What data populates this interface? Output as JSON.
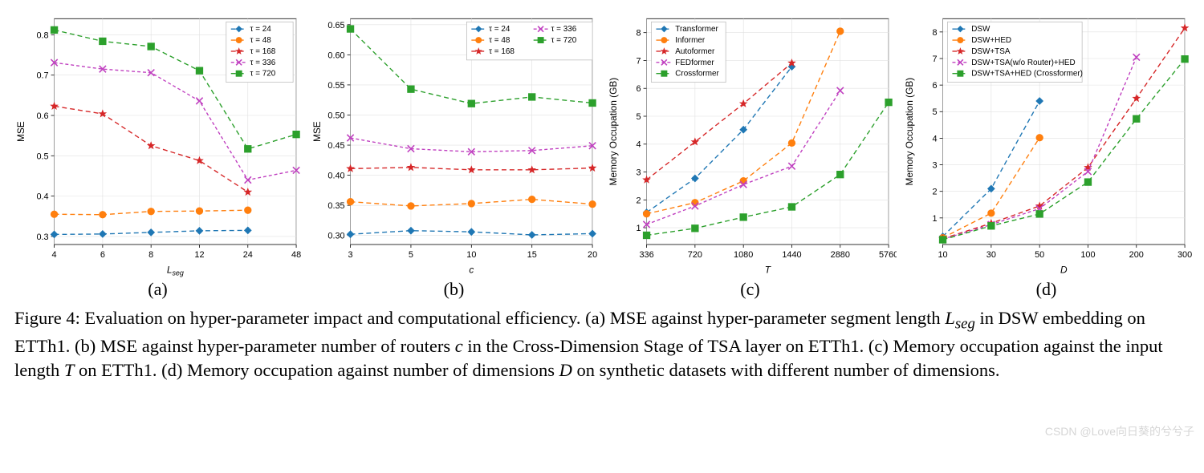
{
  "background_color": "#ffffff",
  "grid_color": "#e0e0e0",
  "border_color": "#000000",
  "watermark": "CSDN @Love向日葵的兮兮子",
  "caption": {
    "prefix": "Figure 4: Evaluation on hyper-parameter impact and computational efficiency. (a) MSE against hyper-parameter segment length ",
    "lseg": "L",
    "lseg_sub": "seg",
    "mid1": " in DSW embedding on ETTh1. (b) MSE against hyper-parameter number of routers ",
    "c_var": "c",
    "mid2": " in the Cross-Dimension Stage of TSA layer on ETTh1. (c) Memory occupation against the input length ",
    "t_var": "T",
    "mid3": " on ETTh1. (d) Memory occupation against number of dimensions ",
    "d_var": "D",
    "tail": " on synthetic datasets with different number of dimensions."
  },
  "panels": {
    "a": {
      "letter": "(a)",
      "type": "line",
      "xlabel": "L_seg",
      "ylabel": "MSE",
      "xticks": [
        4,
        6,
        8,
        12,
        24,
        48
      ],
      "yticks": [
        0.3,
        0.4,
        0.5,
        0.6,
        0.7,
        0.8
      ],
      "xlim": [
        4,
        48
      ],
      "ylim": [
        0.28,
        0.84
      ],
      "legend_pos": "upper-right",
      "series": [
        {
          "label": "τ = 24",
          "color": "#1f77b4",
          "marker": "diamond",
          "dash": "6,4",
          "x": [
            4,
            6,
            8,
            12,
            24
          ],
          "y": [
            0.305,
            0.306,
            0.31,
            0.314,
            0.315
          ]
        },
        {
          "label": "τ = 48",
          "color": "#ff7f0e",
          "marker": "circle",
          "dash": "6,4",
          "x": [
            4,
            6,
            8,
            12,
            24
          ],
          "y": [
            0.355,
            0.354,
            0.362,
            0.363,
            0.365
          ]
        },
        {
          "label": "τ = 168",
          "color": "#d62728",
          "marker": "star",
          "dash": "6,4",
          "x": [
            4,
            6,
            8,
            12,
            24
          ],
          "y": [
            0.623,
            0.604,
            0.525,
            0.488,
            0.41
          ]
        },
        {
          "label": "τ = 336",
          "color": "#c040c0",
          "marker": "x",
          "dash": "4,3",
          "x": [
            4,
            6,
            8,
            12,
            24,
            48
          ],
          "y": [
            0.731,
            0.715,
            0.706,
            0.636,
            0.44,
            0.464
          ]
        },
        {
          "label": "τ = 720",
          "color": "#2ca02c",
          "marker": "square",
          "dash": "6,4",
          "x": [
            4,
            6,
            8,
            12,
            24,
            48
          ],
          "y": [
            0.812,
            0.784,
            0.771,
            0.711,
            0.517,
            0.553
          ]
        }
      ]
    },
    "b": {
      "letter": "(b)",
      "type": "line",
      "xlabel": "c",
      "ylabel": "MSE",
      "xticks": [
        3,
        5,
        10,
        15,
        20
      ],
      "yticks": [
        0.3,
        0.35,
        0.4,
        0.45,
        0.5,
        0.55,
        0.6,
        0.65
      ],
      "xlim": [
        3,
        20
      ],
      "ylim": [
        0.285,
        0.66
      ],
      "legend_pos": "upper-right-2col",
      "series": [
        {
          "label": "τ = 24",
          "color": "#1f77b4",
          "marker": "diamond",
          "dash": "6,4",
          "x": [
            3,
            5,
            10,
            15,
            20
          ],
          "y": [
            0.302,
            0.308,
            0.306,
            0.301,
            0.303
          ]
        },
        {
          "label": "τ = 48",
          "color": "#ff7f0e",
          "marker": "circle",
          "dash": "6,4",
          "x": [
            3,
            5,
            10,
            15,
            20
          ],
          "y": [
            0.356,
            0.349,
            0.353,
            0.36,
            0.352
          ]
        },
        {
          "label": "τ = 168",
          "color": "#d62728",
          "marker": "star",
          "dash": "6,4",
          "x": [
            3,
            5,
            10,
            15,
            20
          ],
          "y": [
            0.411,
            0.413,
            0.409,
            0.409,
            0.412
          ]
        },
        {
          "label": "τ = 336",
          "color": "#c040c0",
          "marker": "x",
          "dash": "4,3",
          "x": [
            3,
            5,
            10,
            15,
            20
          ],
          "y": [
            0.462,
            0.444,
            0.439,
            0.441,
            0.449
          ]
        },
        {
          "label": "τ = 720",
          "color": "#2ca02c",
          "marker": "square",
          "dash": "6,4",
          "x": [
            3,
            5,
            10,
            15,
            20
          ],
          "y": [
            0.643,
            0.543,
            0.519,
            0.53,
            0.52
          ]
        }
      ]
    },
    "c": {
      "letter": "(c)",
      "type": "line",
      "xlabel": "T",
      "ylabel": "Memory Occupation (GB)",
      "xticks": [
        336,
        720,
        1080,
        1440,
        2880,
        5760
      ],
      "yticks": [
        1,
        2,
        3,
        4,
        5,
        6,
        7,
        8
      ],
      "xlim": [
        336,
        5760
      ],
      "ylim": [
        0.4,
        8.5
      ],
      "legend_pos": "upper-left",
      "series": [
        {
          "label": "Transformer",
          "color": "#1f77b4",
          "marker": "diamond",
          "dash": "6,4",
          "x": [
            336,
            720,
            1080,
            1440
          ],
          "y": [
            1.55,
            2.77,
            4.52,
            6.78
          ]
        },
        {
          "label": "Informer",
          "color": "#ff7f0e",
          "marker": "circle",
          "dash": "6,4",
          "x": [
            336,
            720,
            1080,
            1440,
            2880
          ],
          "y": [
            1.5,
            1.9,
            2.68,
            4.04,
            8.05
          ]
        },
        {
          "label": "Autoformer",
          "color": "#d62728",
          "marker": "star",
          "dash": "6,4",
          "x": [
            336,
            720,
            1080,
            1440
          ],
          "y": [
            2.72,
            4.08,
            5.45,
            6.91
          ]
        },
        {
          "label": "FEDformer",
          "color": "#c040c0",
          "marker": "x",
          "dash": "4,3",
          "x": [
            336,
            720,
            1080,
            1440,
            2880
          ],
          "y": [
            1.12,
            1.78,
            2.55,
            3.21,
            5.92
          ]
        },
        {
          "label": "Crossformer",
          "color": "#2ca02c",
          "marker": "square",
          "dash": "6,4",
          "x": [
            336,
            720,
            1080,
            1440,
            2880,
            5760
          ],
          "y": [
            0.73,
            0.98,
            1.38,
            1.75,
            2.91,
            5.5
          ]
        }
      ]
    },
    "d": {
      "letter": "(d)",
      "type": "line",
      "xlabel": "D",
      "ylabel": "Memory Occupation (GB)",
      "xticks": [
        10,
        30,
        50,
        100,
        200,
        300
      ],
      "yticks": [
        1,
        2,
        3,
        4,
        5,
        6,
        7,
        8
      ],
      "xlim": [
        10,
        300
      ],
      "ylim": [
        0,
        8.5
      ],
      "legend_pos": "upper-left",
      "series": [
        {
          "label": "DSW",
          "color": "#1f77b4",
          "marker": "diamond",
          "dash": "6,4",
          "x": [
            10,
            30,
            50
          ],
          "y": [
            0.3,
            2.1,
            5.4
          ]
        },
        {
          "label": "DSW+HED",
          "color": "#ff7f0e",
          "marker": "circle",
          "dash": "6,4",
          "x": [
            10,
            30,
            50
          ],
          "y": [
            0.25,
            1.18,
            4.02
          ]
        },
        {
          "label": "DSW+TSA",
          "color": "#d62728",
          "marker": "star",
          "dash": "6,4",
          "x": [
            10,
            30,
            50,
            100,
            200,
            300
          ],
          "y": [
            0.22,
            0.8,
            1.45,
            2.9,
            5.5,
            8.15
          ]
        },
        {
          "label": "DSW+TSA(w/o Router)+HED",
          "color": "#c040c0",
          "marker": "x",
          "dash": "4,3",
          "x": [
            10,
            30,
            50,
            100,
            200
          ],
          "y": [
            0.2,
            0.75,
            1.35,
            2.75,
            7.05
          ]
        },
        {
          "label": "DSW+TSA+HED (Crossformer)",
          "color": "#2ca02c",
          "marker": "square",
          "dash": "6,4",
          "x": [
            10,
            30,
            50,
            100,
            200,
            300
          ],
          "y": [
            0.18,
            0.7,
            1.15,
            2.35,
            4.73,
            6.98
          ]
        }
      ]
    }
  }
}
